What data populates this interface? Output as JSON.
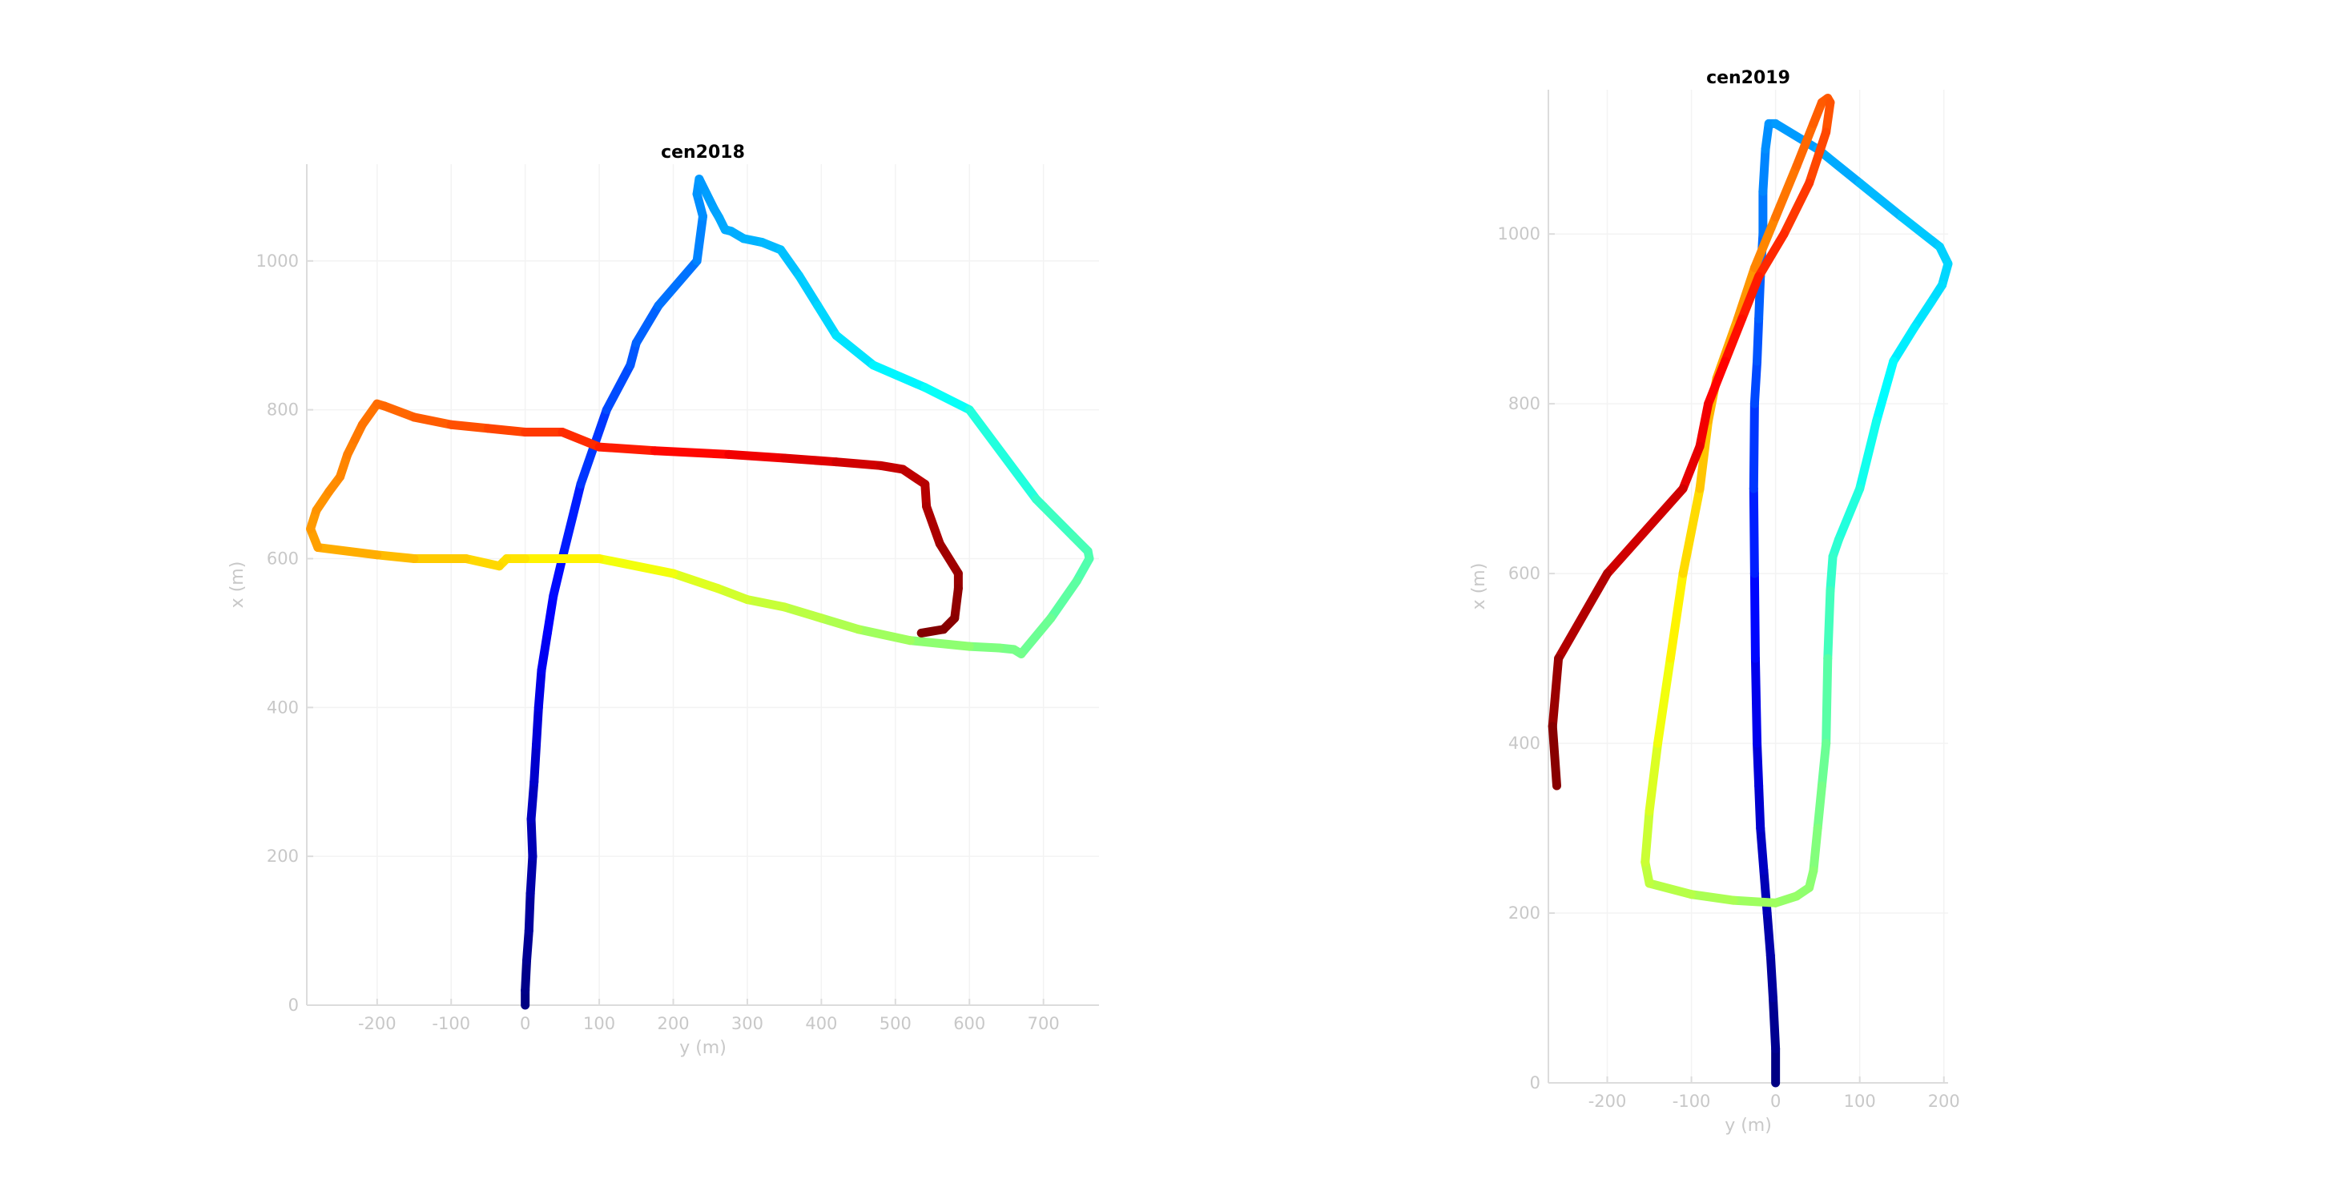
{
  "chart_data": [
    {
      "type": "line",
      "title": "cen2018",
      "xlabel": "y (m)",
      "ylabel": "x (m)",
      "xlim": [
        -295,
        775
      ],
      "ylim": [
        0,
        1130
      ],
      "xticks": [
        -200,
        -100,
        0,
        100,
        200,
        300,
        400,
        500,
        600,
        700
      ],
      "yticks": [
        0,
        200,
        400,
        600,
        800,
        1000
      ],
      "grid": true,
      "colormap": "jet",
      "series": [
        {
          "x": [
            0,
            0,
            2,
            5,
            7,
            10,
            8,
            12,
            15,
            18,
            22,
            30,
            38,
            50,
            75,
            110,
            142,
            150,
            180,
            232,
            240,
            232,
            235,
            245,
            255,
            262,
            270,
            278,
            295,
            320,
            345,
            370,
            395,
            420,
            470,
            540,
            600,
            690,
            700,
            740,
            760,
            762,
            745,
            710,
            670,
            660,
            640,
            600,
            520,
            450,
            400,
            350,
            300,
            260,
            200,
            100,
            0,
            -25,
            -30,
            -35,
            -80,
            -150,
            -200,
            -280,
            -290,
            -282,
            -265,
            -250,
            -240,
            -230,
            -220,
            -200,
            -190,
            -150,
            -100,
            -50,
            0,
            50,
            100,
            175,
            275,
            350,
            420,
            480,
            510,
            540,
            542,
            560,
            585,
            585,
            580,
            565,
            535
          ],
          "y": [
            0,
            20,
            60,
            100,
            150,
            200,
            250,
            300,
            350,
            400,
            450,
            500,
            550,
            600,
            700,
            800,
            860,
            890,
            940,
            1000,
            1060,
            1090,
            1110,
            1090,
            1070,
            1058,
            1042,
            1040,
            1030,
            1025,
            1015,
            980,
            940,
            900,
            860,
            830,
            800,
            680,
            670,
            630,
            610,
            600,
            570,
            520,
            472,
            478,
            480,
            482,
            490,
            505,
            520,
            535,
            545,
            560,
            580,
            600,
            600,
            600,
            595,
            590,
            600,
            600,
            605,
            615,
            640,
            665,
            690,
            710,
            740,
            760,
            780,
            808,
            805,
            790,
            780,
            775,
            770,
            770,
            750,
            745,
            740,
            735,
            730,
            725,
            720,
            700,
            670,
            620,
            580,
            560,
            520,
            505,
            500
          ]
        }
      ]
    },
    {
      "type": "line",
      "title": "cen2019",
      "xlabel": "y (m)",
      "ylabel": "x (m)",
      "xlim": [
        -270,
        205
      ],
      "ylim": [
        0,
        1170
      ],
      "xticks": [
        -200,
        -100,
        0,
        100,
        200
      ],
      "yticks": [
        0,
        200,
        400,
        600,
        800,
        1000
      ],
      "grid": true,
      "colormap": "jet",
      "series": [
        {
          "x": [
            0,
            0,
            -3,
            -6,
            -10,
            -14,
            -18,
            -20,
            -22,
            -24,
            -25,
            -26,
            -25,
            -22,
            -20,
            -18,
            -15,
            -15,
            -12,
            -8,
            0,
            50,
            100,
            150,
            195,
            205,
            198,
            185,
            165,
            140,
            120,
            100,
            75,
            68,
            65,
            62,
            60,
            55,
            50,
            45,
            40,
            25,
            0,
            -50,
            -100,
            -150,
            -155,
            -150,
            -140,
            -125,
            -110,
            -90,
            -80,
            -70,
            -45,
            -25,
            0,
            25,
            45,
            55,
            62,
            65,
            60,
            40,
            10,
            -20,
            -40,
            -60,
            -80,
            -90,
            -110,
            -200,
            -258,
            -265,
            -260
          ],
          "y": [
            0,
            40,
            100,
            150,
            200,
            250,
            300,
            350,
            400,
            500,
            600,
            700,
            800,
            850,
            900,
            950,
            1000,
            1050,
            1100,
            1130,
            1130,
            1100,
            1060,
            1020,
            985,
            965,
            940,
            920,
            890,
            850,
            780,
            700,
            640,
            620,
            580,
            500,
            400,
            350,
            300,
            250,
            230,
            220,
            212,
            215,
            222,
            235,
            260,
            320,
            400,
            500,
            600,
            700,
            780,
            830,
            900,
            960,
            1020,
            1080,
            1130,
            1155,
            1160,
            1155,
            1120,
            1060,
            1000,
            950,
            900,
            850,
            800,
            750,
            700,
            600,
            500,
            420,
            350
          ]
        }
      ]
    }
  ]
}
